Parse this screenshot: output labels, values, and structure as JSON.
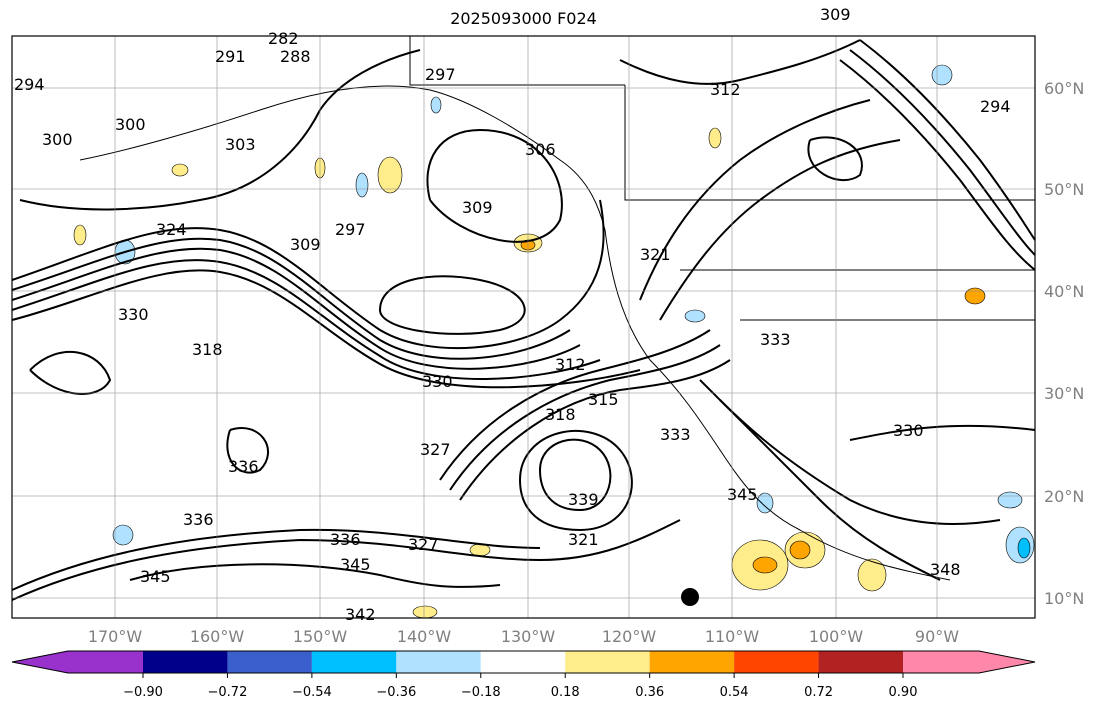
{
  "title": "2025093000 F024",
  "lat_labels": [
    "60°N",
    "50°N",
    "40°N",
    "30°N",
    "20°N",
    "10°N"
  ],
  "lon_labels": [
    "170°W",
    "160°W",
    "150°W",
    "140°W",
    "130°W",
    "120°W",
    "110°W",
    "100°W",
    "90°W"
  ],
  "colorbar": {
    "ticks": [
      "−0.90",
      "−0.72",
      "−0.54",
      "−0.36",
      "−0.18",
      "0.18",
      "0.36",
      "0.54",
      "0.72",
      "0.90"
    ],
    "colors": [
      "#9932cc",
      "#00008b",
      "#3a5fcd",
      "#00bfff",
      "#b0e2ff",
      "#ffffff",
      "#ffec8b",
      "#ffa500",
      "#ff4500",
      "#b22222",
      "#ff88aa"
    ]
  },
  "contour_labels": [
    "294",
    "300",
    "303",
    "291",
    "288",
    "282",
    "297",
    "297",
    "306",
    "309",
    "312",
    "294",
    "300",
    "324",
    "309",
    "330",
    "318",
    "321",
    "330",
    "312",
    "315",
    "318",
    "327",
    "336",
    "336",
    "336",
    "345",
    "327",
    "345",
    "342",
    "333",
    "345",
    "330",
    "333",
    "348",
    "309",
    "321",
    "339"
  ]
}
